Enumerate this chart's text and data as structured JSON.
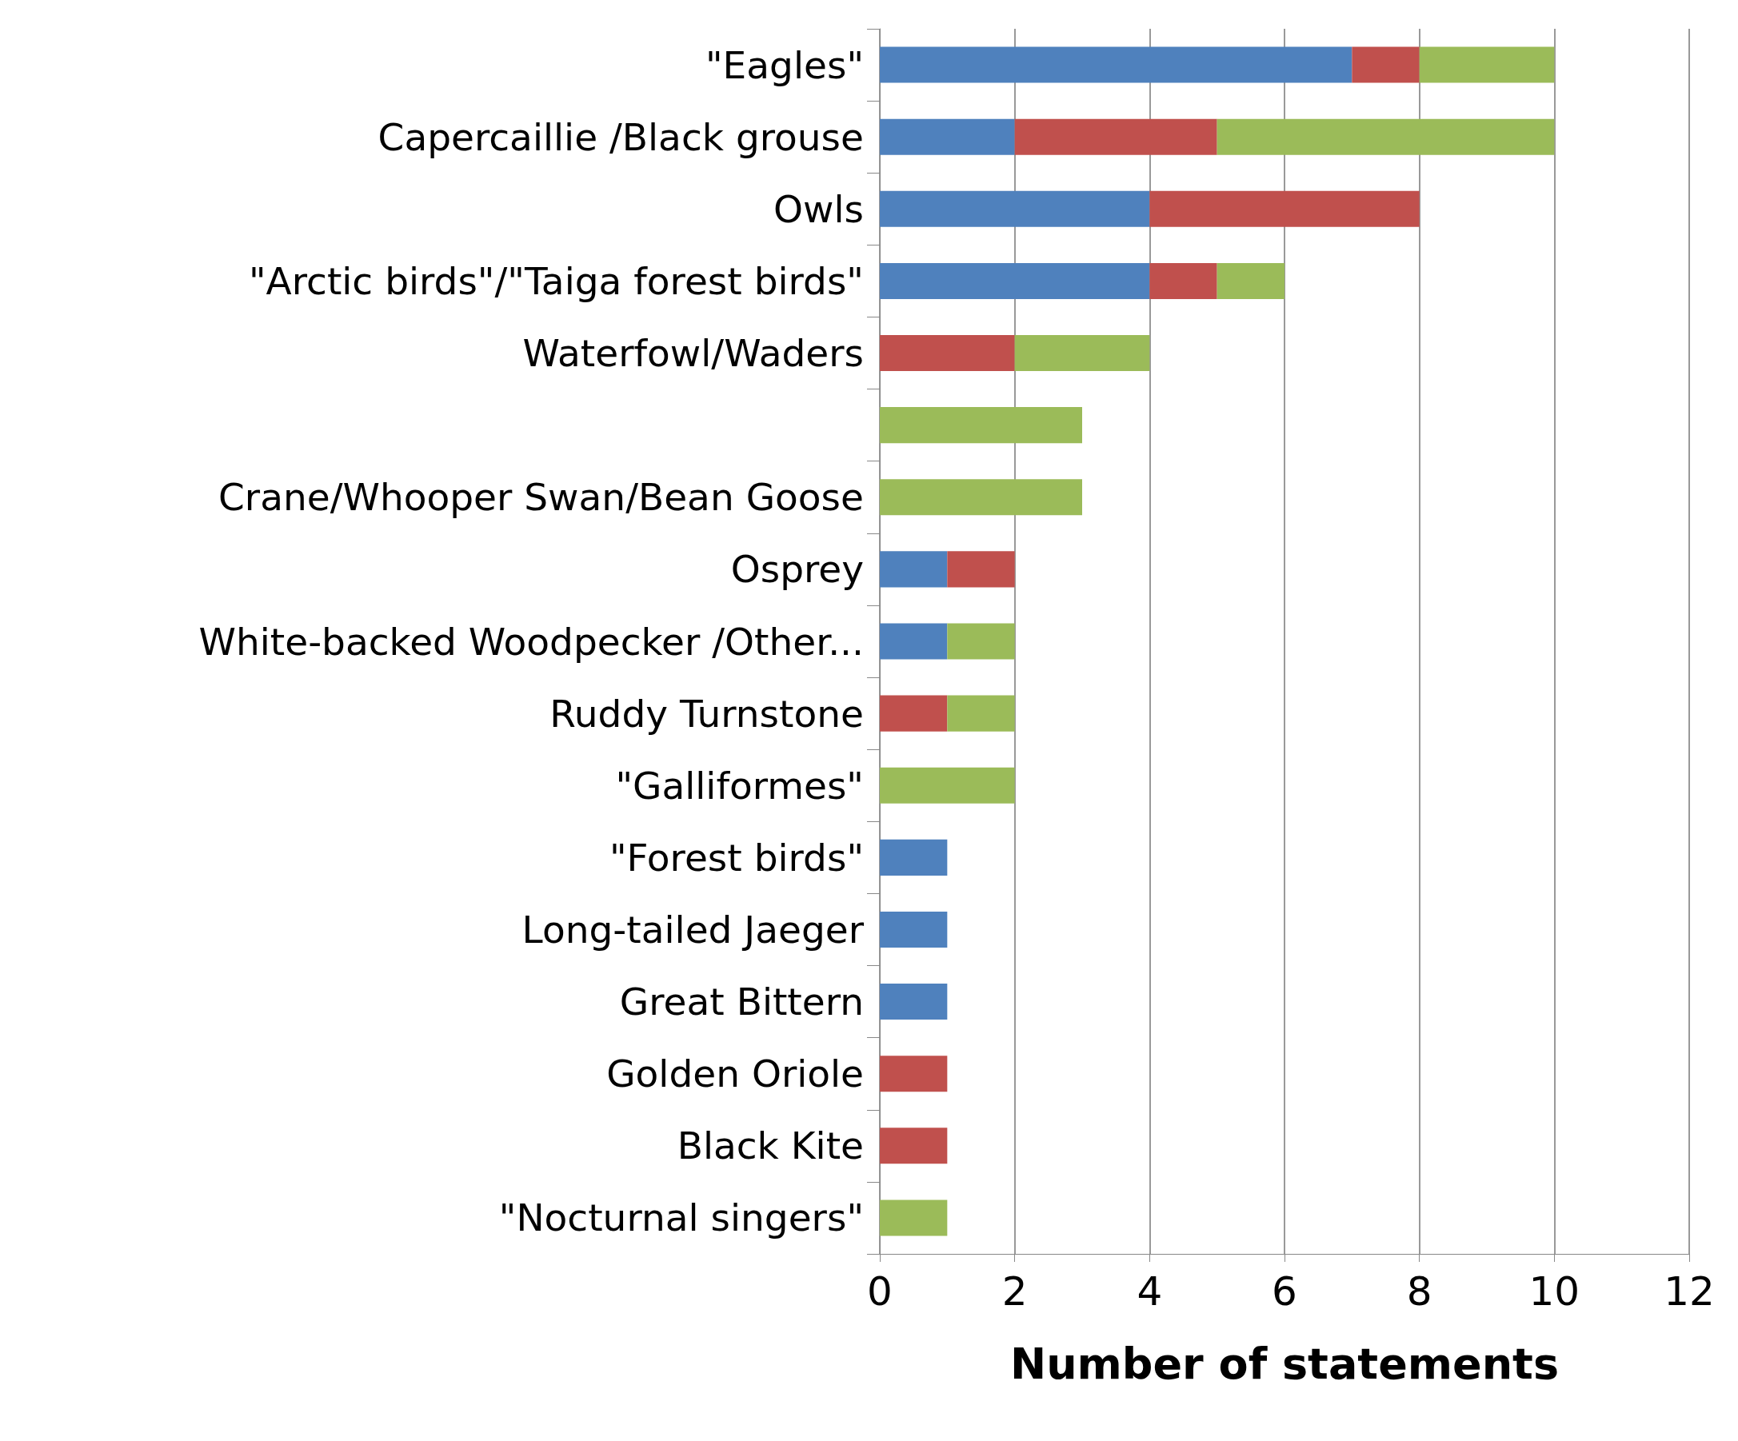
{
  "chart_data": {
    "type": "bar",
    "orientation": "horizontal",
    "stacked": true,
    "xlabel": "Number of statements",
    "categories": [
      "\"Eagles\"",
      "Capercaillie /Black grouse",
      "Owls",
      "\"Arctic birds\"/\"Taiga forest birds\"",
      "Waterfowl/Waders",
      null,
      "Crane/Whooper Swan/Bean Goose",
      "Osprey",
      "White-backed Woodpecker /Other...",
      "Ruddy Turnstone",
      "\"Galliformes\"",
      "\"Forest birds\"",
      "Long-tailed Jaeger",
      "Great Bittern",
      "Golden Oriole",
      "Black Kite",
      "\"Nocturnal singers\""
    ],
    "series": [
      {
        "color": "#4f81bd",
        "values": [
          7,
          2,
          4,
          4,
          null,
          null,
          null,
          1,
          1,
          null,
          null,
          1,
          1,
          1,
          null,
          null,
          null
        ]
      },
      {
        "color": "#c0504d",
        "values": [
          1,
          3,
          4,
          1,
          2,
          null,
          null,
          1,
          null,
          1,
          null,
          null,
          null,
          null,
          1,
          1,
          null
        ]
      },
      {
        "color": "#9bbb59",
        "values": [
          2,
          5,
          null,
          1,
          2,
          3,
          3,
          null,
          1,
          1,
          2,
          null,
          null,
          null,
          null,
          null,
          1
        ]
      }
    ],
    "xlim": [
      0,
      12
    ],
    "xticks": [
      0,
      2,
      4,
      6,
      8,
      10,
      12
    ],
    "grid": "x"
  }
}
